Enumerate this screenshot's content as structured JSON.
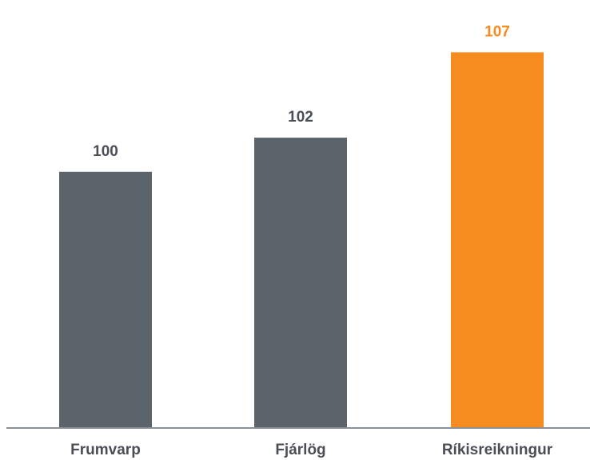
{
  "chart_data": {
    "type": "bar",
    "categories": [
      "Frumvarp",
      "Fjárlög",
      "Ríkisreikningur"
    ],
    "values": [
      100,
      102,
      107
    ],
    "data_labels": [
      "100",
      "102",
      "107"
    ],
    "ylim": [
      85,
      108
    ],
    "grid": false,
    "legend": "none",
    "colors": {
      "default_bar": "#5b646b",
      "highlight_bar": "#f68b1f",
      "default_label": "#4a4f55",
      "highlight_label": "#f68b1f",
      "axis": "#8a9096"
    },
    "highlight_index": 2
  }
}
